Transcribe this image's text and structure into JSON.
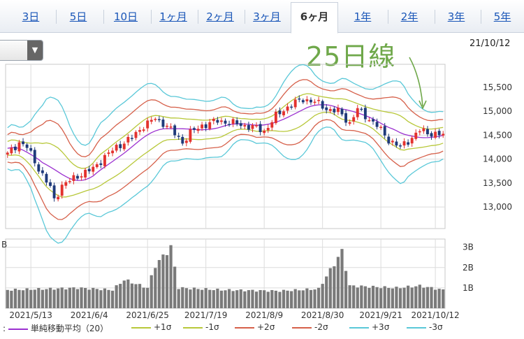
{
  "tabs": [
    {
      "label": "3日"
    },
    {
      "label": "5日"
    },
    {
      "label": "10日"
    },
    {
      "label": "1ヶ月"
    },
    {
      "label": "2ヶ月"
    },
    {
      "label": "3ヶ月"
    },
    {
      "label": "6ヶ月"
    },
    {
      "label": "1年"
    },
    {
      "label": "2年"
    },
    {
      "label": "3年"
    },
    {
      "label": "5年"
    }
  ],
  "active_tab": "6ヶ月",
  "date_label": "21/10/12",
  "annotation": "25日線",
  "legend": [
    {
      "label": "単純移動平均（20）",
      "color": "#9b30d0"
    },
    {
      "label": "+1σ",
      "color": "#b8c83a"
    },
    {
      "label": "-1σ",
      "color": "#b8c83a"
    },
    {
      "label": "+2σ",
      "color": "#d6604a"
    },
    {
      "label": "-2σ",
      "color": "#d6604a"
    },
    {
      "label": "+3σ",
      "color": "#5ac8d8"
    },
    {
      "label": "-3σ",
      "color": "#5ac8d8"
    }
  ],
  "chart_data": {
    "type": "candlestick",
    "price_ticks": [
      "15,500",
      "15,000",
      "14,500",
      "14,000",
      "13,500",
      "13,000"
    ],
    "price_range": [
      12550,
      15980
    ],
    "volume_ticks": [
      "3B",
      "2B",
      "1B"
    ],
    "volume_unit_label": "B",
    "volume_range": [
      0,
      3.4
    ],
    "x_labels": [
      "2021/5/13",
      "2021/6/4",
      "2021/6/25",
      "2021/7/19",
      "2021/8/9",
      "2021/8/30",
      "2021/9/21",
      "2021/10/12"
    ],
    "x_label_index": [
      6,
      21,
      36,
      51,
      66,
      81,
      96,
      110
    ],
    "n_bars": 113,
    "close_anchors": [
      [
        0,
        14100
      ],
      [
        3,
        14350
      ],
      [
        5,
        14250
      ],
      [
        8,
        13800
      ],
      [
        11,
        13400
      ],
      [
        12,
        13150
      ],
      [
        14,
        13450
      ],
      [
        18,
        13650
      ],
      [
        22,
        13800
      ],
      [
        25,
        14050
      ],
      [
        28,
        14250
      ],
      [
        32,
        14450
      ],
      [
        35,
        14700
      ],
      [
        38,
        14850
      ],
      [
        41,
        14700
      ],
      [
        45,
        14350
      ],
      [
        47,
        14550
      ],
      [
        50,
        14700
      ],
      [
        54,
        14800
      ],
      [
        58,
        14750
      ],
      [
        61,
        14700
      ],
      [
        64,
        14650
      ],
      [
        66,
        14580
      ],
      [
        69,
        14900
      ],
      [
        73,
        15150
      ],
      [
        76,
        15250
      ],
      [
        79,
        15200
      ],
      [
        82,
        15050
      ],
      [
        85,
        15000
      ],
      [
        88,
        14750
      ],
      [
        90,
        15050
      ],
      [
        92,
        14900
      ],
      [
        95,
        14700
      ],
      [
        98,
        14400
      ],
      [
        101,
        14250
      ],
      [
        104,
        14450
      ],
      [
        106,
        14600
      ],
      [
        108,
        14550
      ],
      [
        112,
        14500
      ]
    ],
    "volume_anchors": [
      [
        0,
        0.9
      ],
      [
        10,
        0.95
      ],
      [
        18,
        1.0
      ],
      [
        27,
        0.9
      ],
      [
        30,
        1.4
      ],
      [
        36,
        1.0
      ],
      [
        38,
        2.1
      ],
      [
        42,
        3.0
      ],
      [
        44,
        1.0
      ],
      [
        55,
        0.9
      ],
      [
        70,
        0.85
      ],
      [
        80,
        0.95
      ],
      [
        86,
        2.8
      ],
      [
        88,
        1.1
      ],
      [
        100,
        1.0
      ],
      [
        106,
        1.1
      ],
      [
        112,
        0.9
      ]
    ],
    "bands": {
      "sma_20": "#9b30d0",
      "sigma_1": "#b8c83a",
      "sigma_2": "#d6604a",
      "sigma_3": "#5ac8d8"
    },
    "candle_up_color": "#e3322e",
    "candle_down_color": "#1f3a7a",
    "volume_color": "#7a7a7a",
    "grid": true
  }
}
